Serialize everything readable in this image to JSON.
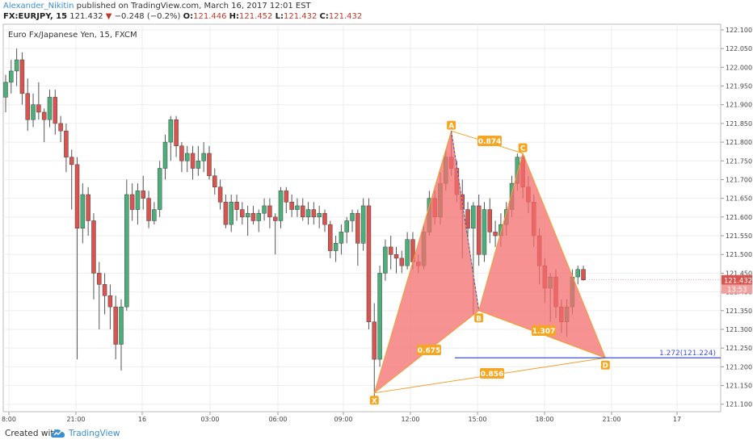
{
  "header": {
    "author": "Alexander_Nikitin",
    "published": "published on TradingView.com, March 16, 2017 12:01 EST",
    "symbol": "FX:EURJPY, 15",
    "last": "121.432",
    "arrow": "▼",
    "change": "−0.248 (−0.2%)",
    "o_label": "O:",
    "o_value": "121.446",
    "h_label": "H:",
    "h_value": "121.452",
    "l_label": "L:",
    "l_value": "121.432",
    "c_label": "C:",
    "c_value": "121.432"
  },
  "footer": {
    "created_with": "Created with",
    "brand": "TradingView"
  },
  "chart_data": {
    "type": "candlestick",
    "title": "Euro Fx/Japanese Yen, 15, FXCM",
    "ylim": [
      121.08,
      122.115
    ],
    "y_ticks": [
      "122.100",
      "122.050",
      "122.000",
      "121.950",
      "121.900",
      "121.850",
      "121.800",
      "121.750",
      "121.700",
      "121.650",
      "121.600",
      "121.550",
      "121.500",
      "121.450",
      "121.400",
      "121.350",
      "121.300",
      "121.250",
      "121.200",
      "121.150",
      "121.100"
    ],
    "x_ticks": [
      "8:00",
      "21:00",
      "16",
      "03:00",
      "06:00",
      "09:00",
      "12:00",
      "15:00",
      "18:00",
      "21:00",
      "17"
    ],
    "current_price": "121.432",
    "countdown": "13:53",
    "colors": {
      "up": "#4caf7a",
      "down": "#d9534f",
      "pattern_fill": "#f46d6d",
      "pattern_line": "#f0a030",
      "level_line": "#3f51d5"
    },
    "candles": [
      [
        121.92,
        121.98,
        121.88,
        121.96
      ],
      [
        121.96,
        122.02,
        121.93,
        121.99
      ],
      [
        121.99,
        122.05,
        121.95,
        122.02
      ],
      [
        122.02,
        122.04,
        121.9,
        121.93
      ],
      [
        121.93,
        121.97,
        121.83,
        121.86
      ],
      [
        121.86,
        121.93,
        121.84,
        121.9
      ],
      [
        121.9,
        121.96,
        121.86,
        121.88
      ],
      [
        121.88,
        121.89,
        121.8,
        121.86
      ],
      [
        121.86,
        121.94,
        121.84,
        121.92
      ],
      [
        121.92,
        121.94,
        121.82,
        121.85
      ],
      [
        121.85,
        121.87,
        121.8,
        121.83
      ],
      [
        121.83,
        121.85,
        121.72,
        121.76
      ],
      [
        121.76,
        121.78,
        121.62,
        121.74
      ],
      [
        121.74,
        121.76,
        121.22,
        121.57
      ],
      [
        121.57,
        121.69,
        121.53,
        121.66
      ],
      [
        121.66,
        121.68,
        121.55,
        121.59
      ],
      [
        121.59,
        121.61,
        121.38,
        121.45
      ],
      [
        121.45,
        121.48,
        121.3,
        121.42
      ],
      [
        121.42,
        121.45,
        121.34,
        121.39
      ],
      [
        121.39,
        121.42,
        121.3,
        121.36
      ],
      [
        121.36,
        121.39,
        121.22,
        121.26
      ],
      [
        121.26,
        121.38,
        121.19,
        121.36
      ],
      [
        121.36,
        121.7,
        121.35,
        121.66
      ],
      [
        121.66,
        121.69,
        121.59,
        121.62
      ],
      [
        121.62,
        121.69,
        121.58,
        121.67
      ],
      [
        121.67,
        121.71,
        121.62,
        121.65
      ],
      [
        121.65,
        121.67,
        121.57,
        121.59
      ],
      [
        121.59,
        121.64,
        121.58,
        121.62
      ],
      [
        121.62,
        121.75,
        121.6,
        121.73
      ],
      [
        121.73,
        121.82,
        121.7,
        121.8
      ],
      [
        121.8,
        121.87,
        121.75,
        121.86
      ],
      [
        121.86,
        121.87,
        121.76,
        121.79
      ],
      [
        121.79,
        121.8,
        121.72,
        121.75
      ],
      [
        121.75,
        121.79,
        121.72,
        121.77
      ],
      [
        121.77,
        121.79,
        121.7,
        121.73
      ],
      [
        121.73,
        121.79,
        121.71,
        121.75
      ],
      [
        121.75,
        121.8,
        121.72,
        121.77
      ],
      [
        121.77,
        121.79,
        121.7,
        121.71
      ],
      [
        121.71,
        121.73,
        121.66,
        121.68
      ],
      [
        121.68,
        121.7,
        121.62,
        121.64
      ],
      [
        121.64,
        121.66,
        121.57,
        121.58
      ],
      [
        121.58,
        121.66,
        121.56,
        121.64
      ],
      [
        121.64,
        121.66,
        121.59,
        121.62
      ],
      [
        121.62,
        121.64,
        121.58,
        121.6
      ],
      [
        121.6,
        121.63,
        121.55,
        121.61
      ],
      [
        121.61,
        121.63,
        121.58,
        121.59
      ],
      [
        121.59,
        121.62,
        121.56,
        121.61
      ],
      [
        121.61,
        121.65,
        121.59,
        121.63
      ],
      [
        121.63,
        121.65,
        121.57,
        121.6
      ],
      [
        121.6,
        121.61,
        121.5,
        121.59
      ],
      [
        121.59,
        121.68,
        121.57,
        121.67
      ],
      [
        121.67,
        121.68,
        121.61,
        121.64
      ],
      [
        121.64,
        121.66,
        121.6,
        121.62
      ],
      [
        121.62,
        121.65,
        121.6,
        121.63
      ],
      [
        121.63,
        121.65,
        121.59,
        121.6
      ],
      [
        121.6,
        121.64,
        121.58,
        121.62
      ],
      [
        121.62,
        121.64,
        121.58,
        121.6
      ],
      [
        121.6,
        121.63,
        121.57,
        121.61
      ],
      [
        121.61,
        121.62,
        121.56,
        121.58
      ],
      [
        121.58,
        121.59,
        121.49,
        121.51
      ],
      [
        121.51,
        121.55,
        121.48,
        121.53
      ],
      [
        121.53,
        121.58,
        121.5,
        121.56
      ],
      [
        121.56,
        121.6,
        121.53,
        121.59
      ],
      [
        121.59,
        121.62,
        121.56,
        121.61
      ],
      [
        121.61,
        121.62,
        121.47,
        121.53
      ],
      [
        121.53,
        121.65,
        121.51,
        121.63
      ],
      [
        121.63,
        121.65,
        121.3,
        121.32
      ],
      [
        121.32,
        121.37,
        121.12,
        121.22
      ],
      [
        121.22,
        121.47,
        121.2,
        121.45
      ],
      [
        121.45,
        121.54,
        121.43,
        121.52
      ],
      [
        121.52,
        121.55,
        121.46,
        121.5
      ],
      [
        121.5,
        121.52,
        121.45,
        121.49
      ],
      [
        121.49,
        121.51,
        121.45,
        121.47
      ],
      [
        121.47,
        121.56,
        121.46,
        121.54
      ],
      [
        121.54,
        121.56,
        121.46,
        121.48
      ],
      [
        121.48,
        121.5,
        121.45,
        121.47
      ],
      [
        121.47,
        121.58,
        121.46,
        121.56
      ],
      [
        121.56,
        121.67,
        121.55,
        121.65
      ],
      [
        121.65,
        121.67,
        121.58,
        121.6
      ],
      [
        121.6,
        121.72,
        121.58,
        121.69
      ],
      [
        121.69,
        121.78,
        121.67,
        121.76
      ],
      [
        121.76,
        121.83,
        121.71,
        121.73
      ],
      [
        121.73,
        121.75,
        121.64,
        121.66
      ],
      [
        121.66,
        121.7,
        121.49,
        121.62
      ],
      [
        121.62,
        121.64,
        121.54,
        121.57
      ],
      [
        121.57,
        121.64,
        121.34,
        121.63
      ],
      [
        121.63,
        121.66,
        121.47,
        121.5
      ],
      [
        121.5,
        121.64,
        121.48,
        121.62
      ],
      [
        121.62,
        121.65,
        121.53,
        121.56
      ],
      [
        121.56,
        121.59,
        121.52,
        121.55
      ],
      [
        121.55,
        121.61,
        121.52,
        121.58
      ],
      [
        121.58,
        121.64,
        121.55,
        121.62
      ],
      [
        121.62,
        121.71,
        121.6,
        121.69
      ],
      [
        121.69,
        121.77,
        121.67,
        121.76
      ],
      [
        121.76,
        121.77,
        121.65,
        121.68
      ],
      [
        121.68,
        121.71,
        121.61,
        121.64
      ],
      [
        121.64,
        121.66,
        121.52,
        121.55
      ],
      [
        121.55,
        121.57,
        121.42,
        121.47
      ],
      [
        121.47,
        121.49,
        121.37,
        121.41
      ],
      [
        121.41,
        121.45,
        121.32,
        121.44
      ],
      [
        121.44,
        121.46,
        121.33,
        121.36
      ],
      [
        121.36,
        121.38,
        121.29,
        121.32
      ],
      [
        121.32,
        121.38,
        121.28,
        121.36
      ],
      [
        121.36,
        121.46,
        121.34,
        121.44
      ],
      [
        121.44,
        121.47,
        121.42,
        121.46
      ],
      [
        121.46,
        121.47,
        121.43,
        121.432
      ]
    ],
    "harmonic_points": [
      {
        "label": "X",
        "price": 121.13
      },
      {
        "label": "A",
        "price": 121.83
      },
      {
        "label": "B",
        "price": 121.35
      },
      {
        "label": "C",
        "price": 121.77
      },
      {
        "label": "D",
        "price": 121.224
      }
    ],
    "ratios": {
      "xb": "0.675",
      "ac": "0.874",
      "bd": "1.307",
      "xd": "0.856"
    },
    "level_label": "1.272(121.224)"
  }
}
